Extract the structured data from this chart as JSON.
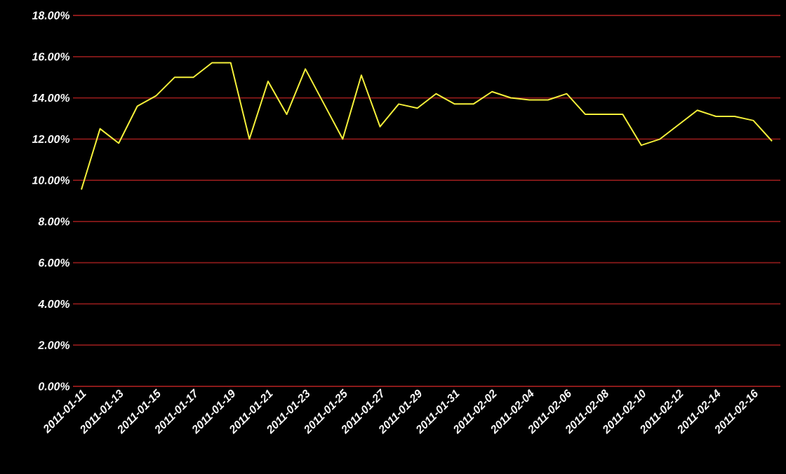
{
  "chart_data": {
    "type": "line",
    "categories": [
      "2011-01-11",
      null,
      "2011-01-13",
      null,
      "2011-01-15",
      null,
      "2011-01-17",
      null,
      "2011-01-19",
      null,
      "2011-01-21",
      null,
      "2011-01-23",
      null,
      "2011-01-25",
      null,
      "2011-01-27",
      null,
      "2011-01-29",
      null,
      "2011-01-31",
      null,
      "2011-02-02",
      null,
      "2011-02-04",
      null,
      "2011-02-06",
      null,
      "2011-02-08",
      null,
      "2011-02-10",
      null,
      "2011-02-12",
      null,
      "2011-02-14",
      null,
      "2011-02-16",
      null
    ],
    "series": [
      {
        "color": "#f5f03a",
        "values": [
          9.55,
          12.5,
          11.8,
          13.6,
          14.1,
          15.0,
          15.0,
          15.7,
          15.7,
          12.0,
          14.8,
          13.2,
          15.4,
          13.7,
          12.0,
          15.1,
          12.6,
          13.7,
          13.5,
          14.2,
          13.7,
          13.7,
          14.3,
          14.0,
          13.9,
          13.9,
          14.2,
          13.2,
          13.2,
          13.2,
          11.7,
          12.0,
          12.7,
          13.4,
          13.1,
          13.1,
          12.9,
          11.9
        ]
      }
    ],
    "ylim": [
      0,
      18
    ],
    "yticks": [
      {
        "value": 0,
        "label": "0.00%"
      },
      {
        "value": 2,
        "label": "2.00%"
      },
      {
        "value": 4,
        "label": "4.00%"
      },
      {
        "value": 6,
        "label": "6.00%"
      },
      {
        "value": 8,
        "label": "8.00%"
      },
      {
        "value": 10,
        "label": "10.00%"
      },
      {
        "value": 12,
        "label": "12.00%"
      },
      {
        "value": 14,
        "label": "14.00%"
      },
      {
        "value": 16,
        "label": "16.00%"
      },
      {
        "value": 18,
        "label": "18.00%"
      }
    ],
    "grid": "y",
    "marker": "none",
    "line_style": "solid"
  }
}
